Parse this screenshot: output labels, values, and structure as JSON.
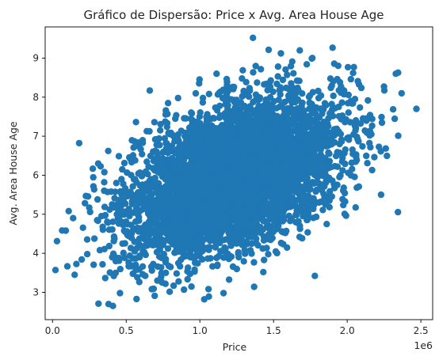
{
  "chart_data": {
    "type": "scatter",
    "title": "Gráfico de Dispersão: Price x Avg. Area House Age",
    "xlabel": "Price",
    "ylabel": "Avg. Area House Age",
    "x_offset_label": "1e6",
    "xlim": [
      -0.05,
      2.58
    ],
    "ylim": [
      2.3,
      9.8
    ],
    "xticks": [
      0.0,
      0.5,
      1.0,
      1.5,
      2.0,
      2.5
    ],
    "xtick_labels": [
      "0.0",
      "0.5",
      "1.0",
      "1.5",
      "2.0",
      "2.5"
    ],
    "yticks": [
      3,
      4,
      5,
      6,
      7,
      8,
      9
    ],
    "ytick_labels": [
      "3",
      "4",
      "5",
      "6",
      "7",
      "8",
      "9"
    ],
    "marker_color": "#1f77b4",
    "grid": false,
    "legend": "none",
    "core_cloud": {
      "n": 4950,
      "mean": [
        1.232,
        5.977
      ],
      "std": [
        0.353,
        0.991
      ],
      "correlation": 0.45
    },
    "outlier_points": [
      [
        0.02,
        3.57
      ],
      [
        0.03,
        4.31
      ],
      [
        0.15,
        3.45
      ],
      [
        0.38,
        2.7
      ],
      [
        0.41,
        2.65
      ],
      [
        1.36,
        9.52
      ],
      [
        1.55,
        9.12
      ],
      [
        1.76,
        8.99
      ],
      [
        2.33,
        8.6
      ],
      [
        2.47,
        7.7
      ],
      [
        1.78,
        3.42
      ],
      [
        0.57,
        2.83
      ],
      [
        1.03,
        2.82
      ],
      [
        2.23,
        5.5
      ],
      [
        0.09,
        4.58
      ],
      [
        0.14,
        4.9
      ],
      [
        0.31,
        6.3
      ],
      [
        0.66,
        8.17
      ],
      [
        2.04,
        8.62
      ],
      [
        2.25,
        8.27
      ]
    ]
  }
}
